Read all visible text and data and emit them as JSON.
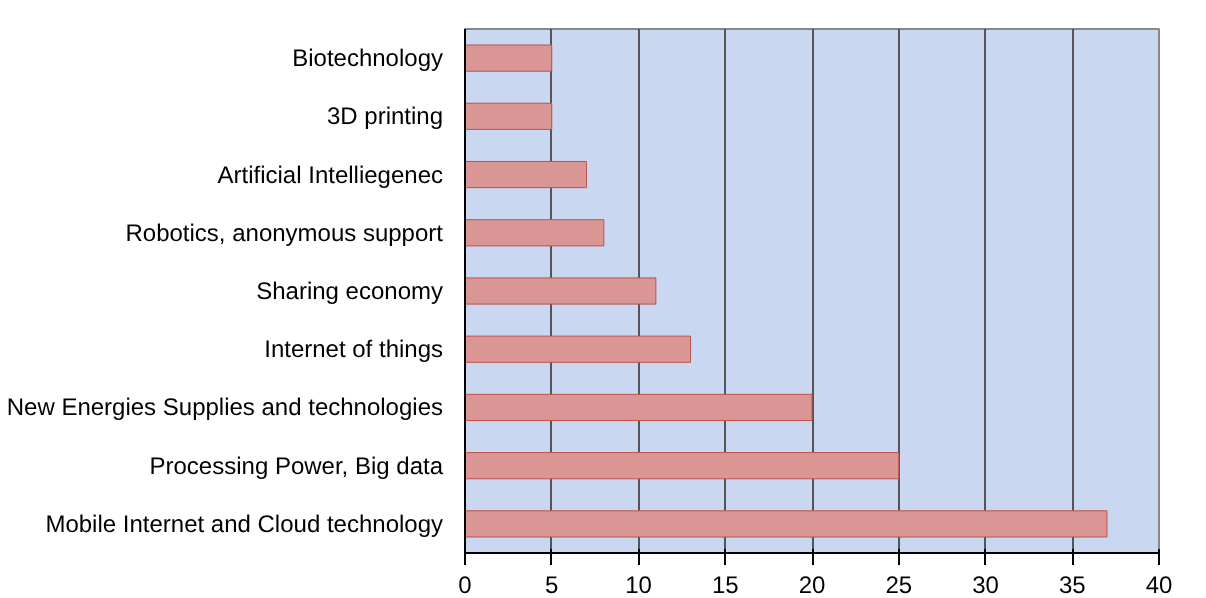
{
  "chart_data": {
    "type": "bar",
    "orientation": "horizontal",
    "categories": [
      "Biotechnology",
      "3D printing",
      "Artificial Intelliegenec",
      "Robotics, anonymous support",
      "Sharing economy",
      "Internet of things",
      "New Energies Supplies and technologies",
      "Processing Power, Big data",
      "Mobile Internet and Cloud technology"
    ],
    "values": [
      5,
      5,
      7,
      8,
      11,
      13,
      20,
      25,
      37
    ],
    "color": "#d99694",
    "xlim": [
      0,
      40
    ],
    "xticks": [
      0,
      5,
      10,
      15,
      20,
      25,
      30,
      35,
      40
    ],
    "grid": "x"
  }
}
